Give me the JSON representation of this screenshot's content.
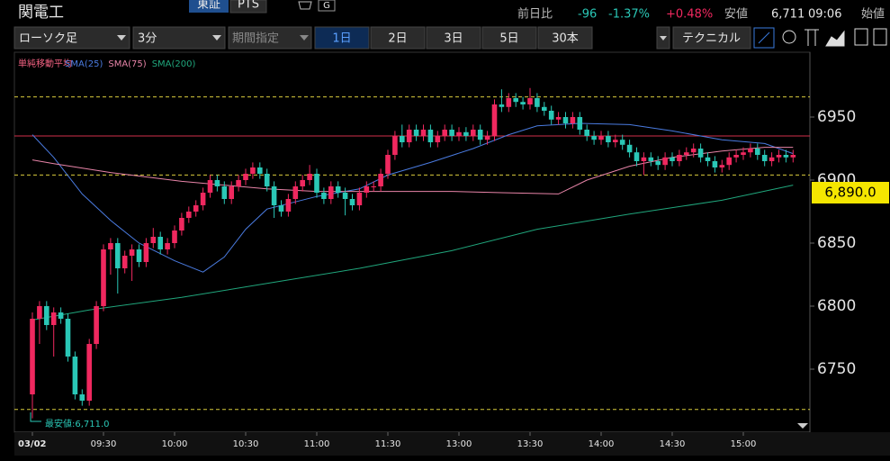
{
  "header": {
    "symbol": "関電工",
    "market_tabs": [
      "東証",
      "PTS"
    ],
    "badge": "G",
    "change_label": "前日比",
    "change": "-96",
    "change_pct": "-1.37%",
    "other_pct": "+0.48%",
    "low_label": "安値",
    "low": "6,711",
    "time": "09:06",
    "open_label": "始値"
  },
  "toolbar": {
    "chart_type": "ローソク足",
    "interval": "3分",
    "period": "期間指定",
    "ranges": [
      "1日",
      "2日",
      "3日",
      "5日",
      "30本"
    ],
    "technical": "テクニカル"
  },
  "chart_data": {
    "type": "candlestick",
    "legend_title": "単純移動平均",
    "annotation": "最安値:6,711.0",
    "categories": [
      "03/02",
      null,
      null,
      null,
      null,
      null,
      null,
      null,
      null,
      null,
      "09:30",
      null,
      null,
      null,
      null,
      null,
      null,
      null,
      null,
      null,
      "10:00",
      null,
      null,
      null,
      null,
      null,
      null,
      null,
      null,
      null,
      "10:30",
      null,
      null,
      null,
      null,
      null,
      null,
      null,
      null,
      null,
      "11:00",
      null,
      null,
      null,
      null,
      null,
      null,
      null,
      null,
      null,
      "11:30",
      null,
      null,
      null,
      null,
      null,
      null,
      null,
      null,
      null,
      "13:00",
      null,
      null,
      null,
      null,
      null,
      null,
      null,
      null,
      null,
      "13:30",
      null,
      null,
      null,
      null,
      null,
      null,
      null,
      null,
      null,
      "14:00",
      null,
      null,
      null,
      null,
      null,
      null,
      null,
      null,
      null,
      "14:30",
      null,
      null,
      null,
      null,
      null,
      null,
      null,
      null,
      null,
      "15:00",
      null,
      null,
      null,
      null,
      null,
      null,
      null
    ],
    "ohlc": {
      "open": [
        6730,
        6790,
        6800,
        6785,
        6795,
        6790,
        6760,
        6730,
        6725,
        6770,
        6800,
        6845,
        6850,
        6830,
        6840,
        6845,
        6835,
        6850,
        6855,
        6845,
        6850,
        6860,
        6870,
        6875,
        6880,
        6890,
        6900,
        6895,
        6885,
        6895,
        6900,
        6905,
        6910,
        6905,
        6895,
        6880,
        6875,
        6885,
        6895,
        6900,
        6905,
        6890,
        6885,
        6895,
        6890,
        6885,
        6880,
        6890,
        6895,
        6895,
        6905,
        6920,
        6935,
        6930,
        6940,
        6935,
        6940,
        6930,
        6935,
        6940,
        6935,
        6938,
        6935,
        6940,
        6932,
        6935,
        6960,
        6958,
        6965,
        6962,
        6960,
        6965,
        6958,
        6955,
        6948,
        6950,
        6945,
        6950,
        6940,
        6935,
        6932,
        6935,
        6930,
        6932,
        6928,
        6922,
        6915,
        6918,
        6915,
        6912,
        6918,
        6915,
        6920,
        6922,
        6925,
        6918,
        6915,
        6910,
        6912,
        6918,
        6920,
        6922,
        6925,
        6920,
        6915,
        6918,
        6920,
        6918
      ],
      "high": [
        6795,
        6804,
        6804,
        6799,
        6799,
        6794,
        6764,
        6734,
        6774,
        6804,
        6849,
        6854,
        6854,
        6844,
        6849,
        6849,
        6854,
        6862,
        6859,
        6854,
        6864,
        6874,
        6879,
        6884,
        6894,
        6904,
        6904,
        6899,
        6899,
        6904,
        6909,
        6914,
        6914,
        6909,
        6899,
        6884,
        6889,
        6899,
        6904,
        6912,
        6909,
        6894,
        6899,
        6899,
        6894,
        6889,
        6894,
        6899,
        6899,
        6909,
        6924,
        6939,
        6944,
        6944,
        6944,
        6944,
        6944,
        6939,
        6944,
        6944,
        6942,
        6942,
        6944,
        6944,
        6939,
        6964,
        6972,
        6969,
        6969,
        6966,
        6973,
        6969,
        6962,
        6959,
        6954,
        6954,
        6954,
        6954,
        6944,
        6939,
        6939,
        6939,
        6936,
        6936,
        6932,
        6926,
        6922,
        6922,
        6919,
        6922,
        6922,
        6924,
        6926,
        6929,
        6929,
        6922,
        6919,
        6916,
        6922,
        6924,
        6926,
        6929,
        6929,
        6924,
        6922,
        6924,
        6924,
        6924
      ],
      "low": [
        6711,
        6770,
        6781,
        6760,
        6786,
        6756,
        6726,
        6721,
        6721,
        6766,
        6796,
        6825,
        6810,
        6826,
        6820,
        6831,
        6831,
        6846,
        6841,
        6841,
        6846,
        6856,
        6866,
        6871,
        6876,
        6886,
        6891,
        6881,
        6881,
        6891,
        6896,
        6901,
        6901,
        6891,
        6870,
        6871,
        6871,
        6881,
        6891,
        6896,
        6886,
        6881,
        6881,
        6886,
        6872,
        6876,
        6876,
        6886,
        6891,
        6891,
        6901,
        6916,
        6926,
        6926,
        6931,
        6931,
        6926,
        6926,
        6931,
        6931,
        6931,
        6931,
        6931,
        6928,
        6928,
        6931,
        6954,
        6954,
        6958,
        6956,
        6956,
        6954,
        6951,
        6944,
        6944,
        6941,
        6941,
        6936,
        6931,
        6928,
        6928,
        6926,
        6926,
        6924,
        6918,
        6911,
        6904,
        6911,
        6908,
        6908,
        6911,
        6911,
        6916,
        6918,
        6914,
        6911,
        6906,
        6906,
        6908,
        6914,
        6916,
        6918,
        6916,
        6911,
        6911,
        6914,
        6914,
        6914
      ],
      "close": [
        6790,
        6800,
        6785,
        6795,
        6790,
        6760,
        6730,
        6725,
        6770,
        6800,
        6845,
        6850,
        6830,
        6840,
        6845,
        6835,
        6850,
        6855,
        6845,
        6850,
        6860,
        6870,
        6875,
        6880,
        6890,
        6900,
        6895,
        6885,
        6895,
        6900,
        6905,
        6910,
        6905,
        6895,
        6880,
        6875,
        6885,
        6895,
        6900,
        6905,
        6890,
        6885,
        6895,
        6890,
        6885,
        6880,
        6890,
        6895,
        6895,
        6905,
        6920,
        6935,
        6930,
        6940,
        6935,
        6940,
        6930,
        6935,
        6940,
        6935,
        6938,
        6935,
        6940,
        6932,
        6935,
        6960,
        6958,
        6965,
        6962,
        6960,
        6965,
        6958,
        6955,
        6948,
        6950,
        6945,
        6950,
        6940,
        6935,
        6932,
        6935,
        6930,
        6932,
        6928,
        6922,
        6915,
        6918,
        6915,
        6912,
        6918,
        6915,
        6920,
        6922,
        6925,
        6918,
        6915,
        6910,
        6912,
        6918,
        6920,
        6922,
        6925,
        6920,
        6915,
        6918,
        6920,
        6918,
        6920
      ]
    },
    "up_color": "#f0285f",
    "down_color": "#2ac7b6",
    "lines": [
      {
        "name": "SMA(25)",
        "color": "#4a7be0",
        "x": [
          0,
          3,
          7,
          11,
          15,
          20,
          24,
          27,
          30,
          33,
          40,
          46,
          50,
          56,
          62,
          67,
          71,
          77,
          84,
          90,
          97,
          103,
          107
        ],
        "values": [
          6936,
          6918,
          6889,
          6868,
          6850,
          6836,
          6827,
          6839,
          6861,
          6877,
          6887,
          6893,
          6904,
          6914,
          6925,
          6936,
          6943,
          6945,
          6944,
          6939,
          6932,
          6929,
          6921
        ]
      },
      {
        "name": "SMA(75)",
        "color": "#e884a8",
        "x": [
          0,
          3,
          11,
          21,
          27,
          33,
          40,
          46,
          52,
          59,
          66,
          74,
          78,
          84,
          90,
          97,
          103,
          107
        ],
        "values": [
          6916,
          6913,
          6906,
          6899,
          6896,
          6893,
          6891,
          6891,
          6891,
          6891,
          6890,
          6889,
          6900,
          6911,
          6918,
          6923,
          6926,
          6926
        ]
      },
      {
        "name": "SMA(200)",
        "color": "#20a67c",
        "x": [
          0,
          8,
          21,
          33,
          46,
          59,
          71,
          84,
          97,
          107
        ],
        "values": [
          6789,
          6797,
          6807,
          6818,
          6830,
          6844,
          6861,
          6873,
          6884,
          6896
        ]
      }
    ],
    "ref_lines": [
      {
        "value": 6966,
        "color": "#d9cc3c",
        "style": "dashed"
      },
      {
        "value": 6904,
        "color": "#d9cc3c",
        "style": "dashed"
      },
      {
        "value": 6718,
        "color": "#d9cc3c",
        "style": "dashed"
      },
      {
        "value": 6935,
        "color": "#d2304a",
        "style": "solid"
      }
    ],
    "price_marker": {
      "value": 6890,
      "label": "6,890.0"
    },
    "ylim": [
      6700,
      7000
    ],
    "yticks": [
      6750,
      6800,
      6850,
      6900,
      6950
    ]
  }
}
